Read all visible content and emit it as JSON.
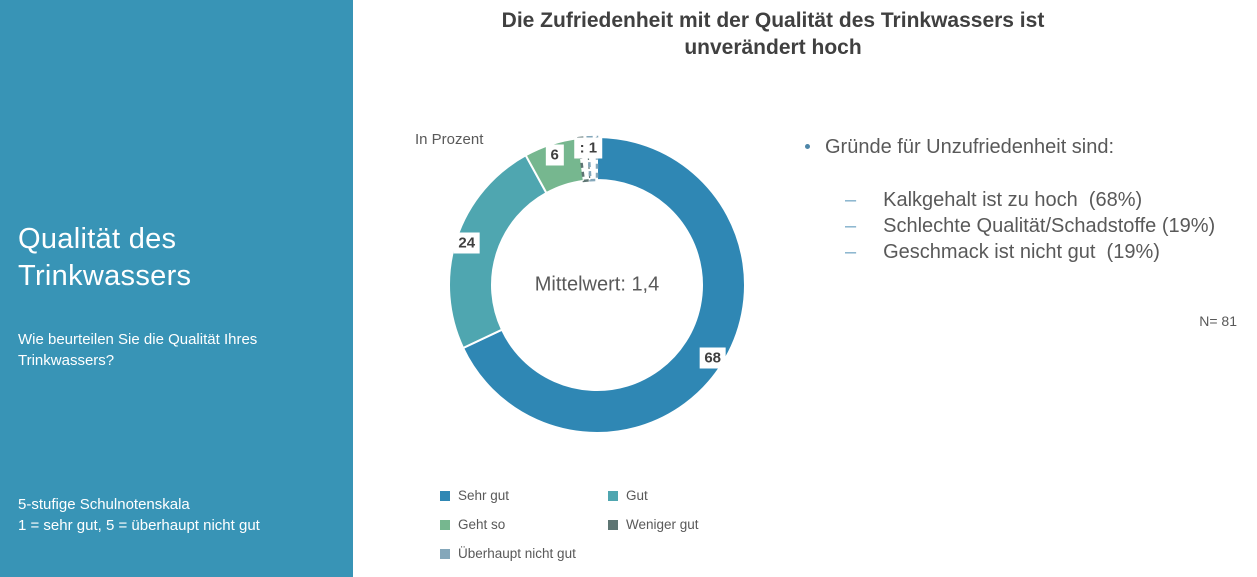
{
  "slide": {
    "title_lines": [
      "Die Zufriedenheit mit der Qualität des Trinkwassers ist",
      "unverändert hoch"
    ],
    "title_color": "#404040"
  },
  "sidebar": {
    "title": "Qualität des Trinkwassers",
    "subtitle": "Wie beurteilen Sie die Qualität Ihres Trinkwassers?",
    "footnote_line1": "5-stufige Schulnotenskala",
    "footnote_line2": "1 = sehr gut, 5 = überhaupt nicht gut",
    "background_color": "#3894B6",
    "text_color": "#FFFFFF"
  },
  "chart_data": {
    "type": "pie",
    "subtype": "donut",
    "title": "Die Zufriedenheit mit der Qualität des Trinkwassers ist unverändert hoch",
    "unit_label": "In Prozent",
    "center_label": "Mittelwert: 1,4",
    "categories": [
      "Sehr gut",
      "Gut",
      "Geht so",
      "Weniger gut",
      "Überhaupt nicht gut"
    ],
    "values": [
      68,
      24,
      6,
      1,
      1
    ],
    "colors": [
      "#2F87B4",
      "#4FA6B0",
      "#76B78F",
      "#5E7573",
      "#84A7BA"
    ],
    "data_labels": [
      "68",
      "24",
      "6",
      ": 1",
      ""
    ],
    "tiny_segment_style": "white fill with dashed colored outline",
    "start_angle_deg": 0,
    "direction": "clockwise",
    "legend_position": "bottom"
  },
  "insights": {
    "heading": "Gründe für Unzufriedenheit sind:",
    "items": [
      "Kalkgehalt ist zu hoch  (68%)",
      "Schlechte Qualität/Schadstoffe (19%)",
      "Geschmack ist nicht gut  (19%)"
    ],
    "sample_size": "N= 81"
  },
  "text_color_body": "#595959"
}
